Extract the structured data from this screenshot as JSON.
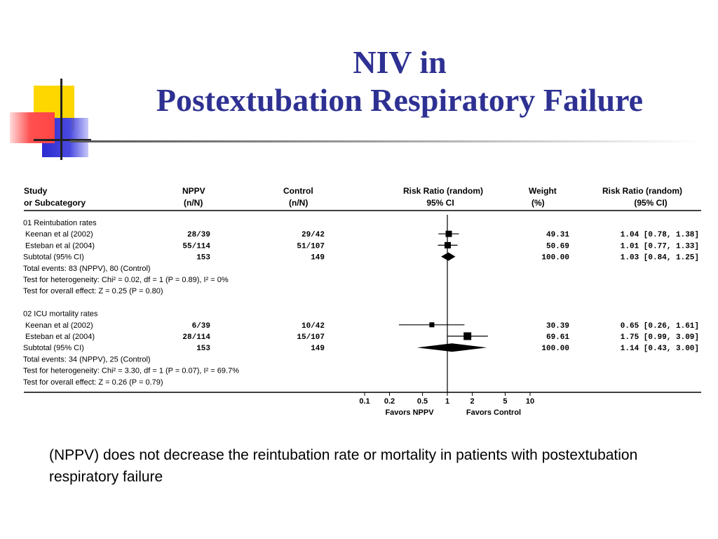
{
  "slide": {
    "title_line1": "NIV in",
    "title_line2": "Postextubation Respiratory Failure",
    "caption": "(NPPV) does not decrease the reintubation rate or mortality in patients with postextubation respiratory failure",
    "colors": {
      "title": "#2e3192",
      "deco_yellow": "#ffd700",
      "deco_blue": "#3b3bd9",
      "deco_red": "#ff4d4d"
    }
  },
  "chart_data": {
    "type": "forest",
    "x_scale": "log",
    "xlim": [
      0.1,
      10
    ],
    "null_line": 1,
    "header": {
      "study_1": "Study",
      "study_2": "or Subcategory",
      "nppv_1": "NPPV",
      "nppv_2": "(n/N)",
      "control_1": "Control",
      "control_2": "(n/N)",
      "rr_1": "Risk Ratio (random)",
      "rr_2": "95% CI",
      "weight_1": "Weight",
      "weight_2": "(%)",
      "rrtext_1": "Risk Ratio (random)",
      "rrtext_2": "(95% CI)"
    },
    "rows": [
      {
        "kind": "label",
        "label": "01 Reintubation rates"
      },
      {
        "kind": "study",
        "label": "Keenan et al (2002)",
        "nppv": "28/39",
        "control": "29/42",
        "rr": 1.04,
        "lo": 0.78,
        "hi": 1.38,
        "weight": "49.31",
        "ci_text": "1.04 [0.78, 1.38]"
      },
      {
        "kind": "study",
        "label": "Esteban et al (2004)",
        "nppv": "55/114",
        "control": "51/107",
        "rr": 1.01,
        "lo": 0.77,
        "hi": 1.33,
        "weight": "50.69",
        "ci_text": "1.01 [0.77, 1.33]"
      },
      {
        "kind": "subtotal",
        "label": "Subtotal (95% CI)",
        "nppv": "153",
        "control": "149",
        "rr": 1.03,
        "lo": 0.84,
        "hi": 1.25,
        "weight": "100.00",
        "ci_text": "1.03 [0.84, 1.25]"
      },
      {
        "kind": "label",
        "label": "Total events: 83 (NPPV), 80 (Control)"
      },
      {
        "kind": "label",
        "label": "Test for heterogeneity: Chi² = 0.02, df = 1 (P = 0.89), I² = 0%"
      },
      {
        "kind": "label",
        "label": "Test for overall effect: Z = 0.25 (P = 0.80)"
      },
      {
        "kind": "blank"
      },
      {
        "kind": "label",
        "label": "02 ICU mortality rates"
      },
      {
        "kind": "study",
        "label": "Keenan et al (2002)",
        "nppv": "6/39",
        "control": "10/42",
        "rr": 0.65,
        "lo": 0.26,
        "hi": 1.61,
        "weight": "30.39",
        "ci_text": "0.65 [0.26, 1.61]"
      },
      {
        "kind": "study",
        "label": "Esteban et al (2004)",
        "nppv": "28/114",
        "control": "15/107",
        "rr": 1.75,
        "lo": 0.99,
        "hi": 3.09,
        "weight": "69.61",
        "ci_text": "1.75 [0.99, 3.09]"
      },
      {
        "kind": "subtotal",
        "label": "Subtotal (95% CI)",
        "nppv": "153",
        "control": "149",
        "rr": 1.14,
        "lo": 0.43,
        "hi": 3.0,
        "weight": "100.00",
        "ci_text": "1.14 [0.43, 3.00]"
      },
      {
        "kind": "label",
        "label": "Total events: 34 (NPPV), 25 (Control)"
      },
      {
        "kind": "label",
        "label": "Test for heterogeneity: Chi² = 3.30, df = 1 (P = 0.07), I² = 69.7%"
      },
      {
        "kind": "label",
        "label": "Test for overall effect: Z = 0.26 (P = 0.79)"
      }
    ],
    "ticks": [
      {
        "value": 0.1,
        "label": "0.1"
      },
      {
        "value": 0.2,
        "label": "0.2"
      },
      {
        "value": 0.5,
        "label": "0.5"
      },
      {
        "value": 1,
        "label": "1"
      },
      {
        "value": 2,
        "label": "2"
      },
      {
        "value": 5,
        "label": "5"
      },
      {
        "value": 10,
        "label": "10"
      }
    ],
    "favors_left": "Favors NPPV",
    "favors_right": "Favors Control"
  }
}
